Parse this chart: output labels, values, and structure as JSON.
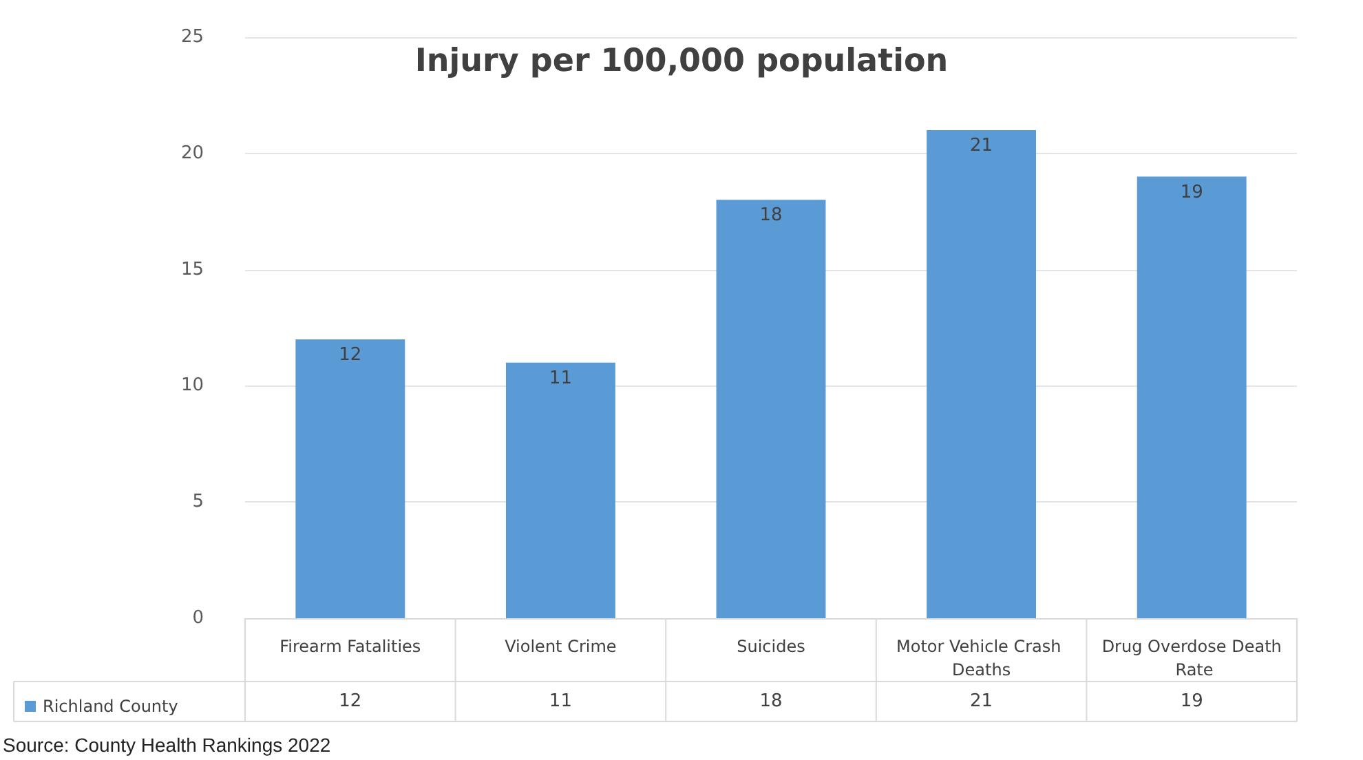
{
  "chart_data": {
    "type": "bar",
    "title": "Injury per 100,000 population",
    "categories": [
      "Firearm Fatalities",
      "Violent Crime",
      "Suicides",
      "Motor Vehicle Crash Deaths",
      "Drug Overdose Death Rate"
    ],
    "series": [
      {
        "name": "Richland County",
        "color": "#5b9bd5",
        "values": [
          12,
          11,
          18,
          21,
          19
        ],
        "value_labels": [
          "12",
          "11",
          "18",
          "21",
          "19"
        ]
      }
    ],
    "ylim": [
      0,
      25
    ],
    "yticks": [
      0,
      5,
      10,
      15,
      20,
      25
    ],
    "grid": "y",
    "data_labels": true,
    "legend": "bottom left",
    "annotations": [
      "Source: County Health Rankings 2022"
    ]
  }
}
